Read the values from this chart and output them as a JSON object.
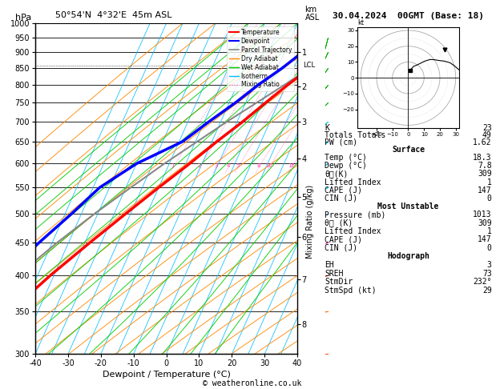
{
  "title_left": "50°54'N  4°32'E  45m ASL",
  "title_right": "30.04.2024  00GMT (Base: 18)",
  "xlabel": "Dewpoint / Temperature (°C)",
  "footer": "© weatheronline.co.uk",
  "pmin": 300,
  "pmax": 1000,
  "tmin": -40,
  "tmax": 40,
  "skew_factor": 45,
  "pressure_levels": [
    300,
    350,
    400,
    450,
    500,
    550,
    600,
    650,
    700,
    750,
    800,
    850,
    900,
    950,
    1000
  ],
  "km_heights": [
    1,
    2,
    3,
    4,
    5,
    6,
    7,
    8
  ],
  "km_pressures": [
    900,
    795,
    700,
    612,
    532,
    460,
    394,
    334
  ],
  "mixing_ratios": [
    1,
    2,
    3,
    4,
    5,
    8,
    10,
    16,
    20,
    25
  ],
  "lcl_pressure": 858,
  "stats_k": 23,
  "stats_tt": 49,
  "stats_pw": 1.62,
  "surf_temp": 18.3,
  "surf_dewp": 7.8,
  "surf_thetae": 309,
  "surf_li": 1,
  "surf_cape": 147,
  "surf_cin": 0,
  "mu_pressure": 1013,
  "mu_thetae": 309,
  "mu_li": 1,
  "mu_cape": 147,
  "mu_cin": 0,
  "hodo_eh": 3,
  "hodo_sreh": 73,
  "hodo_stmdir": "232°",
  "hodo_stmspd": 29,
  "temp_profile_p": [
    1013,
    950,
    900,
    850,
    800,
    750,
    700,
    650,
    600,
    550,
    500,
    450,
    400,
    350,
    300
  ],
  "temp_profile_t": [
    18.3,
    13.5,
    9.2,
    5.0,
    0.5,
    -3.8,
    -8.2,
    -13.5,
    -18.8,
    -25.0,
    -31.5,
    -38.5,
    -46.0,
    -53.5,
    -59.0
  ],
  "dewp_profile_p": [
    1013,
    950,
    900,
    850,
    800,
    750,
    700,
    650,
    600,
    550,
    500,
    450,
    400,
    350,
    300
  ],
  "dewp_profile_t": [
    7.8,
    4.5,
    0.5,
    -3.5,
    -8.5,
    -13.0,
    -18.5,
    -24.0,
    -35.0,
    -43.0,
    -48.0,
    -54.0,
    -60.0,
    -66.0,
    -72.0
  ],
  "parcel_profile_p": [
    1013,
    950,
    900,
    858,
    850,
    800,
    750,
    700,
    650,
    600,
    550,
    500,
    450,
    400,
    350,
    300
  ],
  "parcel_profile_t": [
    18.3,
    13.0,
    8.5,
    5.5,
    5.0,
    -0.5,
    -6.5,
    -13.0,
    -19.5,
    -26.5,
    -33.5,
    -41.0,
    -48.5,
    -56.0,
    -64.0,
    -72.0
  ],
  "wind_pressures": [
    950,
    900,
    850,
    800,
    750,
    700,
    650,
    600,
    550,
    500,
    450,
    400,
    350,
    300
  ],
  "wind_dirs": [
    195,
    205,
    215,
    220,
    225,
    230,
    235,
    240,
    245,
    250,
    255,
    260,
    265,
    270
  ],
  "wind_spds": [
    5,
    8,
    10,
    12,
    15,
    18,
    20,
    22,
    25,
    28,
    30,
    32,
    35,
    38
  ],
  "isotherm_color": "#00bbff",
  "dry_adiabat_color": "#ff8800",
  "wet_adiabat_color": "#00cc00",
  "mixing_ratio_color": "#ff44aa",
  "temp_color": "#ff0000",
  "dewp_color": "#0000ff",
  "parcel_color": "#888888"
}
